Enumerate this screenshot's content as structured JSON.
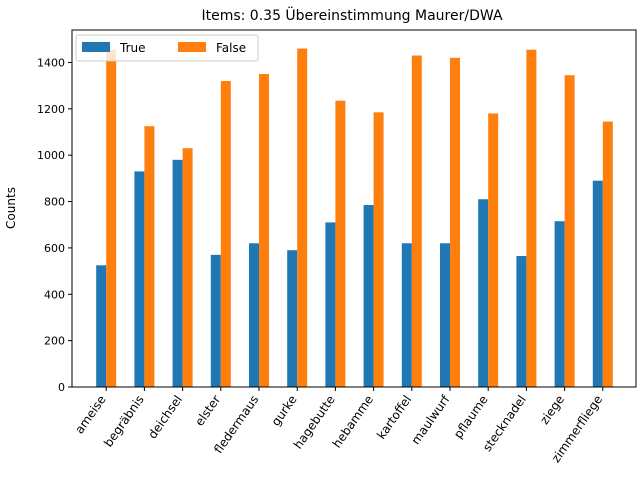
{
  "chart_data": {
    "type": "bar",
    "title": "Items: 0.35 Übereinstimmung Maurer/DWA",
    "xlabel": "",
    "ylabel": "Counts",
    "ylim": [
      0,
      1540
    ],
    "yticks": [
      0,
      200,
      400,
      600,
      800,
      1000,
      1200,
      1400
    ],
    "legend_placement": "top-left",
    "categories": [
      "ameise",
      "begräbnis",
      "deichsel",
      "elster",
      "fledermaus",
      "gurke",
      "hagebutte",
      "hebamme",
      "kartoffel",
      "maulwurf",
      "pflaume",
      "stecknadel",
      "ziege",
      "zimmerfliege"
    ],
    "series": [
      {
        "name": "True",
        "color": "#1f77b4",
        "values": [
          525,
          930,
          980,
          570,
          620,
          590,
          710,
          785,
          620,
          620,
          810,
          565,
          715,
          890
        ]
      },
      {
        "name": "False",
        "color": "#ff7f0e",
        "values": [
          1455,
          1125,
          1030,
          1320,
          1350,
          1460,
          1235,
          1185,
          1430,
          1420,
          1180,
          1455,
          1345,
          1145
        ]
      }
    ]
  }
}
